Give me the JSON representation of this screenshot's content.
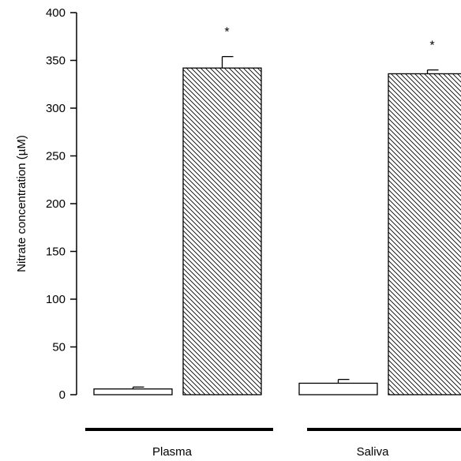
{
  "chart_data": {
    "type": "bar",
    "ylabel": "Nitrate concentration (µM)",
    "ylim": [
      0,
      400
    ],
    "yticks": [
      0,
      50,
      100,
      150,
      200,
      250,
      300,
      350,
      400
    ],
    "grid": false,
    "legend": "none",
    "categories": [
      "Plasma",
      "Saliva"
    ],
    "series": [
      {
        "fill": "open",
        "values": [
          6,
          12
        ],
        "errors": [
          2,
          4
        ]
      },
      {
        "fill": "hatched",
        "values": [
          342,
          336
        ],
        "errors": [
          12,
          4
        ],
        "significance": [
          "*",
          "*"
        ]
      }
    ]
  }
}
